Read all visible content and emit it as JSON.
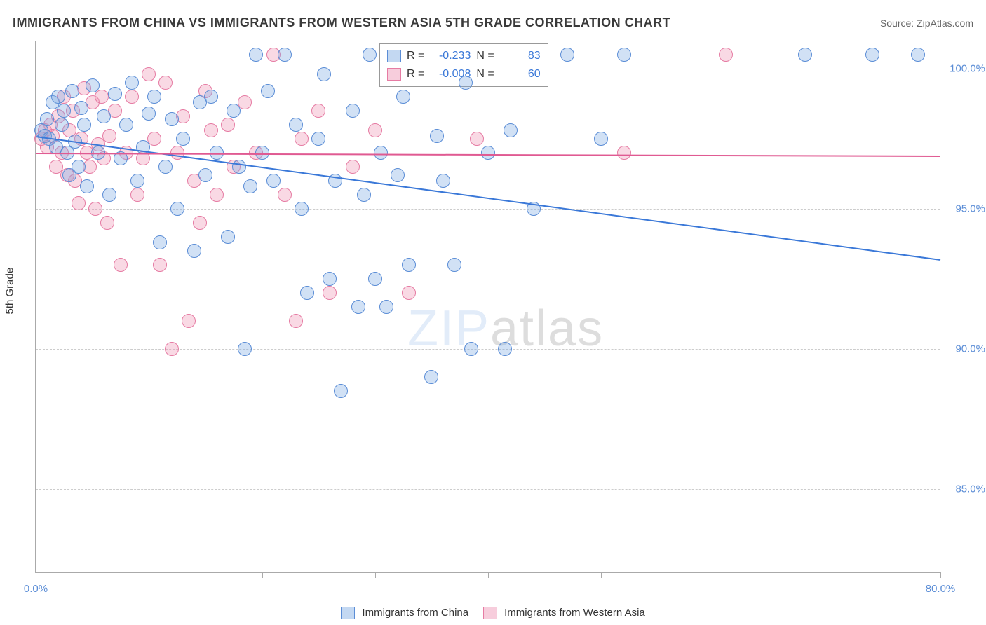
{
  "title": "IMMIGRANTS FROM CHINA VS IMMIGRANTS FROM WESTERN ASIA 5TH GRADE CORRELATION CHART",
  "source": "Source: ZipAtlas.com",
  "y_axis_label": "5th Grade",
  "watermark_a": "ZIP",
  "watermark_b": "atlas",
  "chart": {
    "type": "scatter",
    "xlim": [
      0,
      80
    ],
    "ylim": [
      82,
      101
    ],
    "x_ticks": [
      0,
      10,
      20,
      30,
      40,
      50,
      60,
      70,
      80
    ],
    "x_tick_labels": {
      "0": "0.0%",
      "80": "80.0%"
    },
    "y_ticks": [
      85,
      90,
      95,
      100
    ],
    "y_tick_labels": [
      "85.0%",
      "90.0%",
      "95.0%",
      "100.0%"
    ],
    "grid_color": "#cccccc",
    "background_color": "#ffffff",
    "marker_size": 20,
    "series": [
      {
        "key": "china",
        "label": "Immigrants from China",
        "fill_color": "rgba(123,169,226,0.35)",
        "stroke_color": "#5b8dd6",
        "trend_color": "#3a78d8",
        "R": "-0.233",
        "N": "83",
        "trend": {
          "x1": 0,
          "y1": 97.6,
          "x2": 80,
          "y2": 93.2
        },
        "points": [
          [
            0.5,
            97.8
          ],
          [
            0.8,
            97.6
          ],
          [
            1.0,
            98.2
          ],
          [
            1.2,
            97.5
          ],
          [
            1.5,
            98.8
          ],
          [
            1.8,
            97.2
          ],
          [
            2.0,
            99.0
          ],
          [
            2.3,
            98.0
          ],
          [
            2.5,
            98.5
          ],
          [
            2.8,
            97.0
          ],
          [
            3.0,
            96.2
          ],
          [
            3.2,
            99.2
          ],
          [
            3.5,
            97.4
          ],
          [
            3.8,
            96.5
          ],
          [
            4.0,
            98.6
          ],
          [
            4.3,
            98.0
          ],
          [
            4.5,
            95.8
          ],
          [
            5.0,
            99.4
          ],
          [
            5.5,
            97.0
          ],
          [
            6.0,
            98.3
          ],
          [
            6.5,
            95.5
          ],
          [
            7.0,
            99.1
          ],
          [
            7.5,
            96.8
          ],
          [
            8.0,
            98.0
          ],
          [
            8.5,
            99.5
          ],
          [
            9.0,
            96.0
          ],
          [
            9.5,
            97.2
          ],
          [
            10.0,
            98.4
          ],
          [
            10.5,
            99.0
          ],
          [
            11.0,
            93.8
          ],
          [
            11.5,
            96.5
          ],
          [
            12.0,
            98.2
          ],
          [
            12.5,
            95.0
          ],
          [
            13.0,
            97.5
          ],
          [
            14.0,
            93.5
          ],
          [
            14.5,
            98.8
          ],
          [
            15.0,
            96.2
          ],
          [
            15.5,
            99.0
          ],
          [
            16.0,
            97.0
          ],
          [
            17.0,
            94.0
          ],
          [
            17.5,
            98.5
          ],
          [
            18.0,
            96.5
          ],
          [
            18.5,
            90.0
          ],
          [
            19.0,
            95.8
          ],
          [
            19.5,
            100.5
          ],
          [
            20.0,
            97.0
          ],
          [
            20.5,
            99.2
          ],
          [
            21.0,
            96.0
          ],
          [
            22.0,
            100.5
          ],
          [
            23.0,
            98.0
          ],
          [
            23.5,
            95.0
          ],
          [
            24.0,
            92.0
          ],
          [
            25.0,
            97.5
          ],
          [
            25.5,
            99.8
          ],
          [
            26.0,
            92.5
          ],
          [
            26.5,
            96.0
          ],
          [
            27.0,
            88.5
          ],
          [
            28.0,
            98.5
          ],
          [
            28.5,
            91.5
          ],
          [
            29.0,
            95.5
          ],
          [
            29.5,
            100.5
          ],
          [
            30.0,
            92.5
          ],
          [
            30.5,
            97.0
          ],
          [
            31.0,
            91.5
          ],
          [
            32.0,
            96.2
          ],
          [
            32.5,
            99.0
          ],
          [
            33.0,
            93.0
          ],
          [
            35.0,
            89.0
          ],
          [
            35.5,
            97.6
          ],
          [
            36.0,
            96.0
          ],
          [
            37.0,
            93.0
          ],
          [
            38.0,
            99.5
          ],
          [
            38.5,
            90.0
          ],
          [
            40.0,
            97.0
          ],
          [
            41.5,
            90.0
          ],
          [
            42.0,
            97.8
          ],
          [
            44.0,
            95.0
          ],
          [
            47.0,
            100.5
          ],
          [
            50.0,
            97.5
          ],
          [
            52.0,
            100.5
          ],
          [
            68.0,
            100.5
          ],
          [
            74.0,
            100.5
          ],
          [
            78.0,
            100.5
          ]
        ]
      },
      {
        "key": "westasia",
        "label": "Immigrants from Western Asia",
        "fill_color": "rgba(238,145,178,0.35)",
        "stroke_color": "#e67ba3",
        "trend_color": "#e05a92",
        "R": "-0.008",
        "N": "60",
        "trend": {
          "x1": 0,
          "y1": 97.0,
          "x2": 80,
          "y2": 96.9
        },
        "points": [
          [
            0.5,
            97.5
          ],
          [
            0.8,
            97.8
          ],
          [
            1.0,
            97.2
          ],
          [
            1.3,
            98.0
          ],
          [
            1.5,
            97.6
          ],
          [
            1.8,
            96.5
          ],
          [
            2.0,
            98.3
          ],
          [
            2.3,
            97.0
          ],
          [
            2.5,
            99.0
          ],
          [
            2.8,
            96.2
          ],
          [
            3.0,
            97.8
          ],
          [
            3.3,
            98.5
          ],
          [
            3.5,
            96.0
          ],
          [
            3.8,
            95.2
          ],
          [
            4.0,
            97.5
          ],
          [
            4.3,
            99.3
          ],
          [
            4.5,
            97.0
          ],
          [
            4.8,
            96.5
          ],
          [
            5.0,
            98.8
          ],
          [
            5.3,
            95.0
          ],
          [
            5.5,
            97.3
          ],
          [
            5.8,
            99.0
          ],
          [
            6.0,
            96.8
          ],
          [
            6.3,
            94.5
          ],
          [
            6.5,
            97.6
          ],
          [
            7.0,
            98.5
          ],
          [
            7.5,
            93.0
          ],
          [
            8.0,
            97.0
          ],
          [
            8.5,
            99.0
          ],
          [
            9.0,
            95.5
          ],
          [
            9.5,
            96.8
          ],
          [
            10.0,
            99.8
          ],
          [
            10.5,
            97.5
          ],
          [
            11.0,
            93.0
          ],
          [
            11.5,
            99.5
          ],
          [
            12.0,
            90.0
          ],
          [
            12.5,
            97.0
          ],
          [
            13.0,
            98.3
          ],
          [
            13.5,
            91.0
          ],
          [
            14.0,
            96.0
          ],
          [
            14.5,
            94.5
          ],
          [
            15.0,
            99.2
          ],
          [
            15.5,
            97.8
          ],
          [
            16.0,
            95.5
          ],
          [
            17.0,
            98.0
          ],
          [
            17.5,
            96.5
          ],
          [
            18.5,
            98.8
          ],
          [
            19.5,
            97.0
          ],
          [
            21.0,
            100.5
          ],
          [
            22.0,
            95.5
          ],
          [
            23.0,
            91.0
          ],
          [
            23.5,
            97.5
          ],
          [
            25.0,
            98.5
          ],
          [
            26.0,
            92.0
          ],
          [
            28.0,
            96.5
          ],
          [
            30.0,
            97.8
          ],
          [
            33.0,
            92.0
          ],
          [
            39.0,
            97.5
          ],
          [
            52.0,
            97.0
          ],
          [
            61.0,
            100.5
          ]
        ]
      }
    ]
  },
  "stats_labels": {
    "R": "R =",
    "N": "N ="
  }
}
